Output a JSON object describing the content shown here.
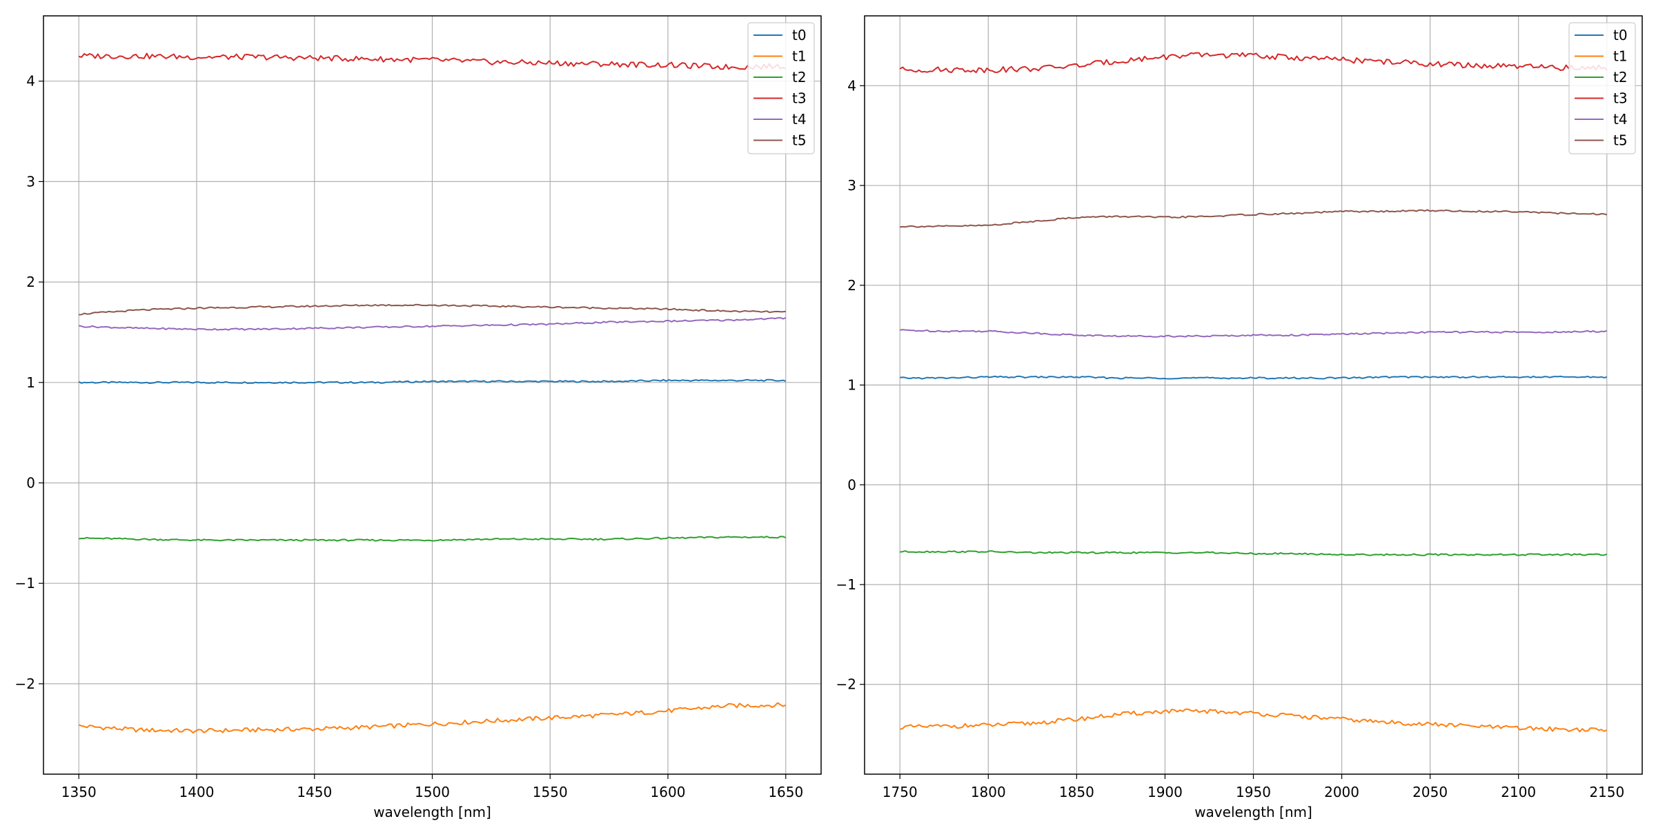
{
  "chart_data": [
    {
      "type": "line",
      "xlabel": "wavelength [nm]",
      "ylabel": "",
      "xlim": [
        1335,
        1665
      ],
      "ylim": [
        -2.9,
        4.65
      ],
      "xticks": [
        1350,
        1400,
        1450,
        1500,
        1550,
        1600,
        1650
      ],
      "yticks": [
        -2,
        -1,
        0,
        1,
        2,
        3,
        4
      ],
      "grid": true,
      "legend_position": "top-right",
      "x": [
        1350,
        1375,
        1400,
        1425,
        1450,
        1475,
        1500,
        1525,
        1550,
        1575,
        1600,
        1625,
        1650
      ],
      "series": [
        {
          "name": "t0",
          "color": "#1f77b4",
          "values": [
            1.0,
            1.0,
            1.0,
            1.0,
            1.0,
            1.0,
            1.01,
            1.01,
            1.01,
            1.01,
            1.02,
            1.02,
            1.02
          ]
        },
        {
          "name": "t1",
          "color": "#ff7f0e",
          "values": [
            -2.42,
            -2.46,
            -2.47,
            -2.46,
            -2.45,
            -2.43,
            -2.4,
            -2.37,
            -2.34,
            -2.31,
            -2.27,
            -2.22,
            -2.21
          ]
        },
        {
          "name": "t2",
          "color": "#2ca02c",
          "values": [
            -0.55,
            -0.56,
            -0.57,
            -0.57,
            -0.57,
            -0.57,
            -0.57,
            -0.56,
            -0.56,
            -0.56,
            -0.55,
            -0.54,
            -0.54
          ]
        },
        {
          "name": "t3",
          "color": "#d62728",
          "values": [
            4.25,
            4.25,
            4.24,
            4.24,
            4.23,
            4.22,
            4.21,
            4.19,
            4.18,
            4.17,
            4.16,
            4.14,
            4.15
          ]
        },
        {
          "name": "t4",
          "color": "#9467bd",
          "values": [
            1.56,
            1.54,
            1.53,
            1.53,
            1.54,
            1.55,
            1.56,
            1.57,
            1.58,
            1.6,
            1.61,
            1.62,
            1.64
          ]
        },
        {
          "name": "t5",
          "color": "#8c564b",
          "values": [
            1.68,
            1.72,
            1.74,
            1.75,
            1.76,
            1.77,
            1.77,
            1.76,
            1.75,
            1.74,
            1.73,
            1.71,
            1.7
          ]
        }
      ]
    },
    {
      "type": "line",
      "xlabel": "wavelength [nm]",
      "ylabel": "",
      "xlim": [
        1730,
        2170
      ],
      "ylim": [
        -2.9,
        4.7
      ],
      "xticks": [
        1750,
        1800,
        1850,
        1900,
        1950,
        2000,
        2050,
        2100,
        2150
      ],
      "yticks": [
        -2,
        -1,
        0,
        1,
        2,
        3,
        4
      ],
      "grid": true,
      "legend_position": "top-right",
      "x": [
        1750,
        1775,
        1800,
        1825,
        1850,
        1875,
        1900,
        1925,
        1950,
        1975,
        2000,
        2025,
        2050,
        2075,
        2100,
        2125,
        2150
      ],
      "series": [
        {
          "name": "t0",
          "color": "#1f77b4",
          "values": [
            1.07,
            1.07,
            1.08,
            1.08,
            1.08,
            1.07,
            1.07,
            1.07,
            1.07,
            1.07,
            1.07,
            1.08,
            1.08,
            1.08,
            1.08,
            1.08,
            1.08
          ]
        },
        {
          "name": "t1",
          "color": "#ff7f0e",
          "values": [
            -2.43,
            -2.42,
            -2.41,
            -2.39,
            -2.35,
            -2.3,
            -2.27,
            -2.27,
            -2.29,
            -2.32,
            -2.35,
            -2.38,
            -2.4,
            -2.42,
            -2.44,
            -2.45,
            -2.46
          ]
        },
        {
          "name": "t2",
          "color": "#2ca02c",
          "values": [
            -0.67,
            -0.67,
            -0.67,
            -0.68,
            -0.68,
            -0.68,
            -0.68,
            -0.68,
            -0.69,
            -0.69,
            -0.7,
            -0.7,
            -0.7,
            -0.7,
            -0.7,
            -0.7,
            -0.7
          ]
        },
        {
          "name": "t3",
          "color": "#d62728",
          "values": [
            4.16,
            4.16,
            4.16,
            4.17,
            4.2,
            4.25,
            4.29,
            4.31,
            4.3,
            4.28,
            4.26,
            4.24,
            4.22,
            4.2,
            4.19,
            4.18,
            4.18
          ]
        },
        {
          "name": "t4",
          "color": "#9467bd",
          "values": [
            1.55,
            1.54,
            1.54,
            1.52,
            1.5,
            1.49,
            1.49,
            1.49,
            1.5,
            1.5,
            1.51,
            1.52,
            1.53,
            1.53,
            1.53,
            1.53,
            1.54
          ]
        },
        {
          "name": "t5",
          "color": "#8c564b",
          "values": [
            2.59,
            2.59,
            2.6,
            2.64,
            2.68,
            2.69,
            2.68,
            2.69,
            2.71,
            2.72,
            2.74,
            2.74,
            2.75,
            2.74,
            2.74,
            2.72,
            2.71
          ]
        }
      ]
    }
  ]
}
